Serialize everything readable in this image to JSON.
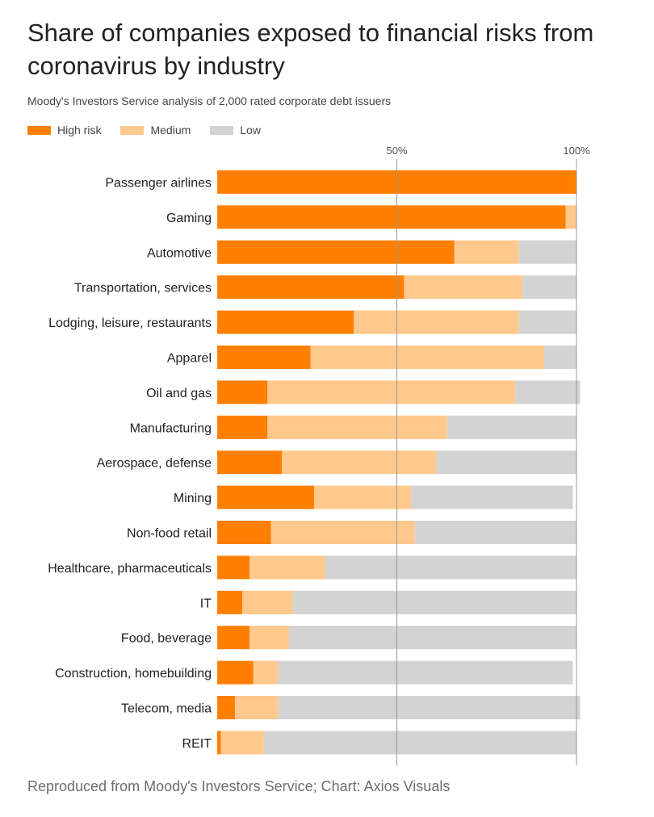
{
  "header": {
    "title": "Share of companies exposed to financial risks from coronavirus by industry",
    "subtitle": "Moody's Investors Service analysis of 2,000 rated corporate debt issuers"
  },
  "legend": {
    "high": "High risk",
    "medium": "Medium",
    "low": "Low"
  },
  "colors": {
    "high": "#ff7f00",
    "medium": "#ffc88c",
    "low": "#d3d3d3",
    "grid": "#999999"
  },
  "footer": {
    "source": "Reproduced from Moody's Investors Service; Chart: Axios Visuals"
  },
  "chart_data": {
    "type": "bar",
    "orientation": "horizontal",
    "stacked": true,
    "categories": [
      "Passenger airlines",
      "Gaming",
      "Automotive",
      "Transportation, services",
      "Lodging, leisure, restaurants",
      "Apparel",
      "Oil and gas",
      "Manufacturing",
      "Aerospace, defense",
      "Mining",
      "Non-food retail",
      "Healthcare, pharmaceuticals",
      "IT",
      "Food, beverage",
      "Construction, homebuilding",
      "Telecom, media",
      "REIT"
    ],
    "series": [
      {
        "name": "High risk",
        "values": [
          100,
          97,
          66,
          52,
          38,
          26,
          14,
          14,
          18,
          27,
          15,
          9,
          7,
          9,
          10,
          5,
          1
        ]
      },
      {
        "name": "Medium",
        "values": [
          0,
          3,
          18,
          33,
          46,
          65,
          69,
          50,
          43,
          27,
          40,
          21,
          14,
          11,
          7,
          12,
          12
        ]
      },
      {
        "name": "Low",
        "values": [
          0,
          0,
          16,
          15,
          16,
          9,
          18,
          36,
          39,
          45,
          45,
          70,
          79,
          80,
          82,
          84,
          87
        ]
      }
    ],
    "x_ticks": [
      "50%",
      "100%"
    ],
    "x_tick_values": [
      50,
      100
    ],
    "xlim": [
      0,
      100
    ],
    "grid": true,
    "legend_position": "top-left"
  }
}
